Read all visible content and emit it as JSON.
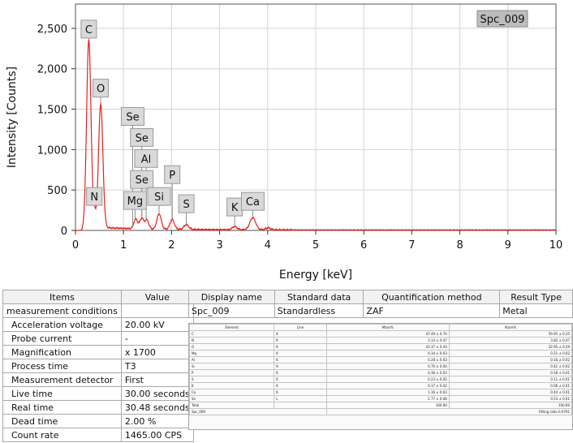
{
  "chart_data": {
    "type": "line",
    "title": "",
    "spectrum_label": "Spc_009",
    "xlabel": "Energy [keV]",
    "ylabel": "Intensity [Counts]",
    "xlim": [
      0,
      10
    ],
    "ylim": [
      0,
      2800
    ],
    "xticks": [
      0,
      1,
      2,
      3,
      4,
      5,
      6,
      7,
      8,
      9,
      10
    ],
    "yticks": [
      0,
      500,
      1000,
      1500,
      2000,
      2500
    ],
    "ytick_labels": [
      "0",
      "500",
      "1,000",
      "1,500",
      "2,000",
      "2,500"
    ],
    "grid": true,
    "line_color": "#e8201b",
    "peaks": [
      {
        "x": 0.277,
        "y": 2320,
        "w": 0.045
      },
      {
        "x": 0.392,
        "y": 180,
        "w": 0.03
      },
      {
        "x": 0.525,
        "y": 1530,
        "w": 0.045
      },
      {
        "x": 1.254,
        "y": 120,
        "w": 0.04
      },
      {
        "x": 1.379,
        "y": 130,
        "w": 0.04
      },
      {
        "x": 1.486,
        "y": 110,
        "w": 0.04
      },
      {
        "x": 1.74,
        "y": 190,
        "w": 0.045
      },
      {
        "x": 2.013,
        "y": 120,
        "w": 0.045
      },
      {
        "x": 2.307,
        "y": 60,
        "w": 0.05
      },
      {
        "x": 3.313,
        "y": 40,
        "w": 0.05
      },
      {
        "x": 3.69,
        "y": 150,
        "w": 0.06
      },
      {
        "x": 4.01,
        "y": 25,
        "w": 0.05
      }
    ],
    "annotations": [
      {
        "label": "C",
        "x": 0.277,
        "y": 2490
      },
      {
        "label": "O",
        "x": 0.525,
        "y": 1760
      },
      {
        "label": "Se",
        "x": 1.19,
        "y": 1410
      },
      {
        "label": "Se",
        "x": 1.38,
        "y": 1150
      },
      {
        "label": "Al",
        "x": 1.47,
        "y": 890
      },
      {
        "label": "Se",
        "x": 1.38,
        "y": 630
      },
      {
        "label": "P",
        "x": 2.013,
        "y": 690
      },
      {
        "label": "N",
        "x": 0.392,
        "y": 420
      },
      {
        "label": "Mg",
        "x": 1.24,
        "y": 370
      },
      {
        "label": "Si",
        "x": 1.74,
        "y": 420
      },
      {
        "label": "S",
        "x": 2.307,
        "y": 330
      },
      {
        "label": "K",
        "x": 3.313,
        "y": 290
      },
      {
        "label": "Ca",
        "x": 3.69,
        "y": 360
      }
    ]
  },
  "params_table": {
    "headers": [
      "Items",
      "Value"
    ],
    "rows": [
      {
        "item": "measurement conditions",
        "value": "",
        "indent": false
      },
      {
        "item": "Acceleration voltage",
        "value": "20.00 kV",
        "indent": true
      },
      {
        "item": "Probe current",
        "value": "-",
        "indent": true
      },
      {
        "item": "Magnification",
        "value": "x 1700",
        "indent": true
      },
      {
        "item": "Process time",
        "value": "T3",
        "indent": true
      },
      {
        "item": "Measurement detector",
        "value": "First",
        "indent": true
      },
      {
        "item": "Live time",
        "value": "30.00 seconds",
        "indent": true
      },
      {
        "item": "Real time",
        "value": "30.48 seconds",
        "indent": true
      },
      {
        "item": "Dead time",
        "value": "2.00 %",
        "indent": true
      },
      {
        "item": "Count rate",
        "value": "1465.00 CPS",
        "indent": true
      }
    ]
  },
  "info_table": {
    "headers": [
      "Display name",
      "Standard data",
      "Quantification method",
      "Result Type"
    ],
    "row": [
      "Spc_009",
      "Standardless",
      "ZAF",
      "Metal"
    ]
  },
  "quant_table": {
    "headers": [
      "Element",
      "Line",
      "Mass%",
      "Atom%"
    ],
    "rows": [
      [
        "C",
        "K",
        "47.49 ± 0.70",
        "59.95 ± 0.35"
      ],
      [
        "N",
        "K",
        "3.13 ± 0.47",
        "3.82 ± 0.47"
      ],
      [
        "O",
        "K",
        "43.37 ± 0.43",
        "32.95 ± 0.29"
      ],
      [
        "Mg",
        "K",
        "0.34 ± 0.03",
        "0.21 ± 0.02"
      ],
      [
        "Al",
        "K",
        "0.28 ± 0.03",
        "0.16 ± 0.02"
      ],
      [
        "Si",
        "K",
        "0.70 ± 0.04",
        "0.41 ± 0.02"
      ],
      [
        "P",
        "K",
        "0.36 ± 0.03",
        "0.18 ± 0.01"
      ],
      [
        "S",
        "K",
        "0.23 ± 0.02",
        "0.11 ± 0.01"
      ],
      [
        "K",
        "K",
        "0.17 ± 0.02",
        "0.06 ± 0.01"
      ],
      [
        "Ca",
        "K",
        "1.16 ± 0.03",
        "0.44 ± 0.01"
      ],
      [
        "Se",
        "L",
        "2.77 ± 0.08",
        "0.53 ± 0.01"
      ],
      [
        "Total",
        "",
        "100.00",
        "100.00"
      ]
    ],
    "footer_name": "Spc_009",
    "footer_fit": "Fitting ratio 0.0791"
  }
}
